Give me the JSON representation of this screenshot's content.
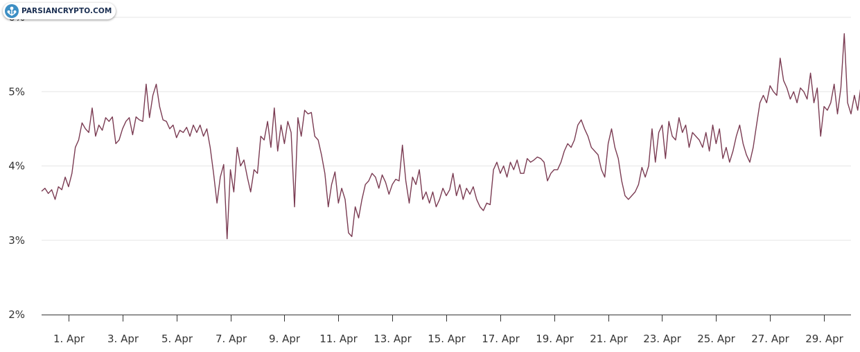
{
  "watermark": {
    "text": "PARSIANCRYPTO.COM",
    "icon": "parsiancrypto-logo-icon"
  },
  "chart_data": {
    "type": "line",
    "title": "",
    "xlabel": "",
    "ylabel": "",
    "x_range": [
      "2023-03-31",
      "2023-04-30"
    ],
    "ylim": [
      2,
      6
    ],
    "y_ticks": [
      "2%",
      "3%",
      "4%",
      "5%",
      "6%"
    ],
    "x_ticks": [
      "1. Apr",
      "3. Apr",
      "5. Apr",
      "7. Apr",
      "9. Apr",
      "11. Apr",
      "13. Apr",
      "15. Apr",
      "17. Apr",
      "19. Apr",
      "21. Apr",
      "23. Apr",
      "25. Apr",
      "27. Apr",
      "29. Apr"
    ],
    "grid": true,
    "line_color": "#7a3b52",
    "series": [
      {
        "x_start": "2023-03-31",
        "step_hours": 3,
        "values": [
          3.66,
          3.7,
          3.63,
          3.68,
          3.55,
          3.72,
          3.68,
          3.85,
          3.72,
          3.9,
          4.25,
          4.35,
          4.58,
          4.5,
          4.45,
          4.78,
          4.4,
          4.55,
          4.48,
          4.65,
          4.6,
          4.66,
          4.3,
          4.35,
          4.5,
          4.6,
          4.65,
          4.42,
          4.66,
          4.62,
          4.6,
          5.1,
          4.65,
          4.95,
          5.1,
          4.8,
          4.62,
          4.6,
          4.5,
          4.55,
          4.38,
          4.48,
          4.45,
          4.52,
          4.4,
          4.55,
          4.45,
          4.55,
          4.4,
          4.5,
          4.25,
          3.9,
          3.5,
          3.85,
          4.02,
          3.02,
          3.95,
          3.65,
          4.25,
          4.0,
          4.08,
          3.85,
          3.65,
          3.95,
          3.9,
          4.4,
          4.35,
          4.6,
          4.25,
          4.78,
          4.2,
          4.55,
          4.3,
          4.6,
          4.45,
          3.45,
          4.65,
          4.4,
          4.75,
          4.7,
          4.72,
          4.4,
          4.35,
          4.15,
          3.9,
          3.45,
          3.75,
          3.92,
          3.5,
          3.7,
          3.55,
          3.1,
          3.05,
          3.45,
          3.3,
          3.55,
          3.75,
          3.8,
          3.9,
          3.85,
          3.7,
          3.88,
          3.78,
          3.62,
          3.75,
          3.82,
          3.8,
          4.28,
          3.8,
          3.5,
          3.85,
          3.75,
          3.95,
          3.55,
          3.65,
          3.5,
          3.65,
          3.45,
          3.55,
          3.7,
          3.6,
          3.68,
          3.9,
          3.6,
          3.75,
          3.55,
          3.7,
          3.62,
          3.72,
          3.55,
          3.45,
          3.4,
          3.5,
          3.48,
          3.95,
          4.05,
          3.9,
          4.0,
          3.85,
          4.05,
          3.95,
          4.08,
          3.9,
          3.9,
          4.1,
          4.05,
          4.08,
          4.12,
          4.1,
          4.05,
          3.8,
          3.9,
          3.95,
          3.95,
          4.05,
          4.2,
          4.3,
          4.25,
          4.35,
          4.55,
          4.62,
          4.5,
          4.4,
          4.25,
          4.2,
          4.15,
          3.95,
          3.85,
          4.3,
          4.5,
          4.25,
          4.1,
          3.8,
          3.6,
          3.55,
          3.6,
          3.65,
          3.75,
          3.98,
          3.85,
          4.0,
          4.5,
          4.05,
          4.45,
          4.55,
          4.1,
          4.6,
          4.4,
          4.35,
          4.65,
          4.45,
          4.55,
          4.25,
          4.45,
          4.4,
          4.35,
          4.25,
          4.45,
          4.2,
          4.55,
          4.3,
          4.5,
          4.1,
          4.25,
          4.05,
          4.2,
          4.4,
          4.55,
          4.3,
          4.15,
          4.05,
          4.25,
          4.55,
          4.85,
          4.95,
          4.85,
          5.08,
          5.0,
          4.95,
          5.45,
          5.15,
          5.05,
          4.9,
          5.0,
          4.85,
          5.05,
          5.0,
          4.9,
          5.25,
          4.85,
          5.05,
          4.4,
          4.8,
          4.75,
          4.85,
          5.1,
          4.7,
          5.05,
          5.78,
          4.85,
          4.7,
          4.95,
          4.75,
          5.1,
          4.9,
          5.1,
          4.8,
          4.6,
          4.85,
          4.75,
          4.95,
          4.9,
          4.75,
          5.35,
          4.8,
          4.95
        ]
      }
    ]
  }
}
